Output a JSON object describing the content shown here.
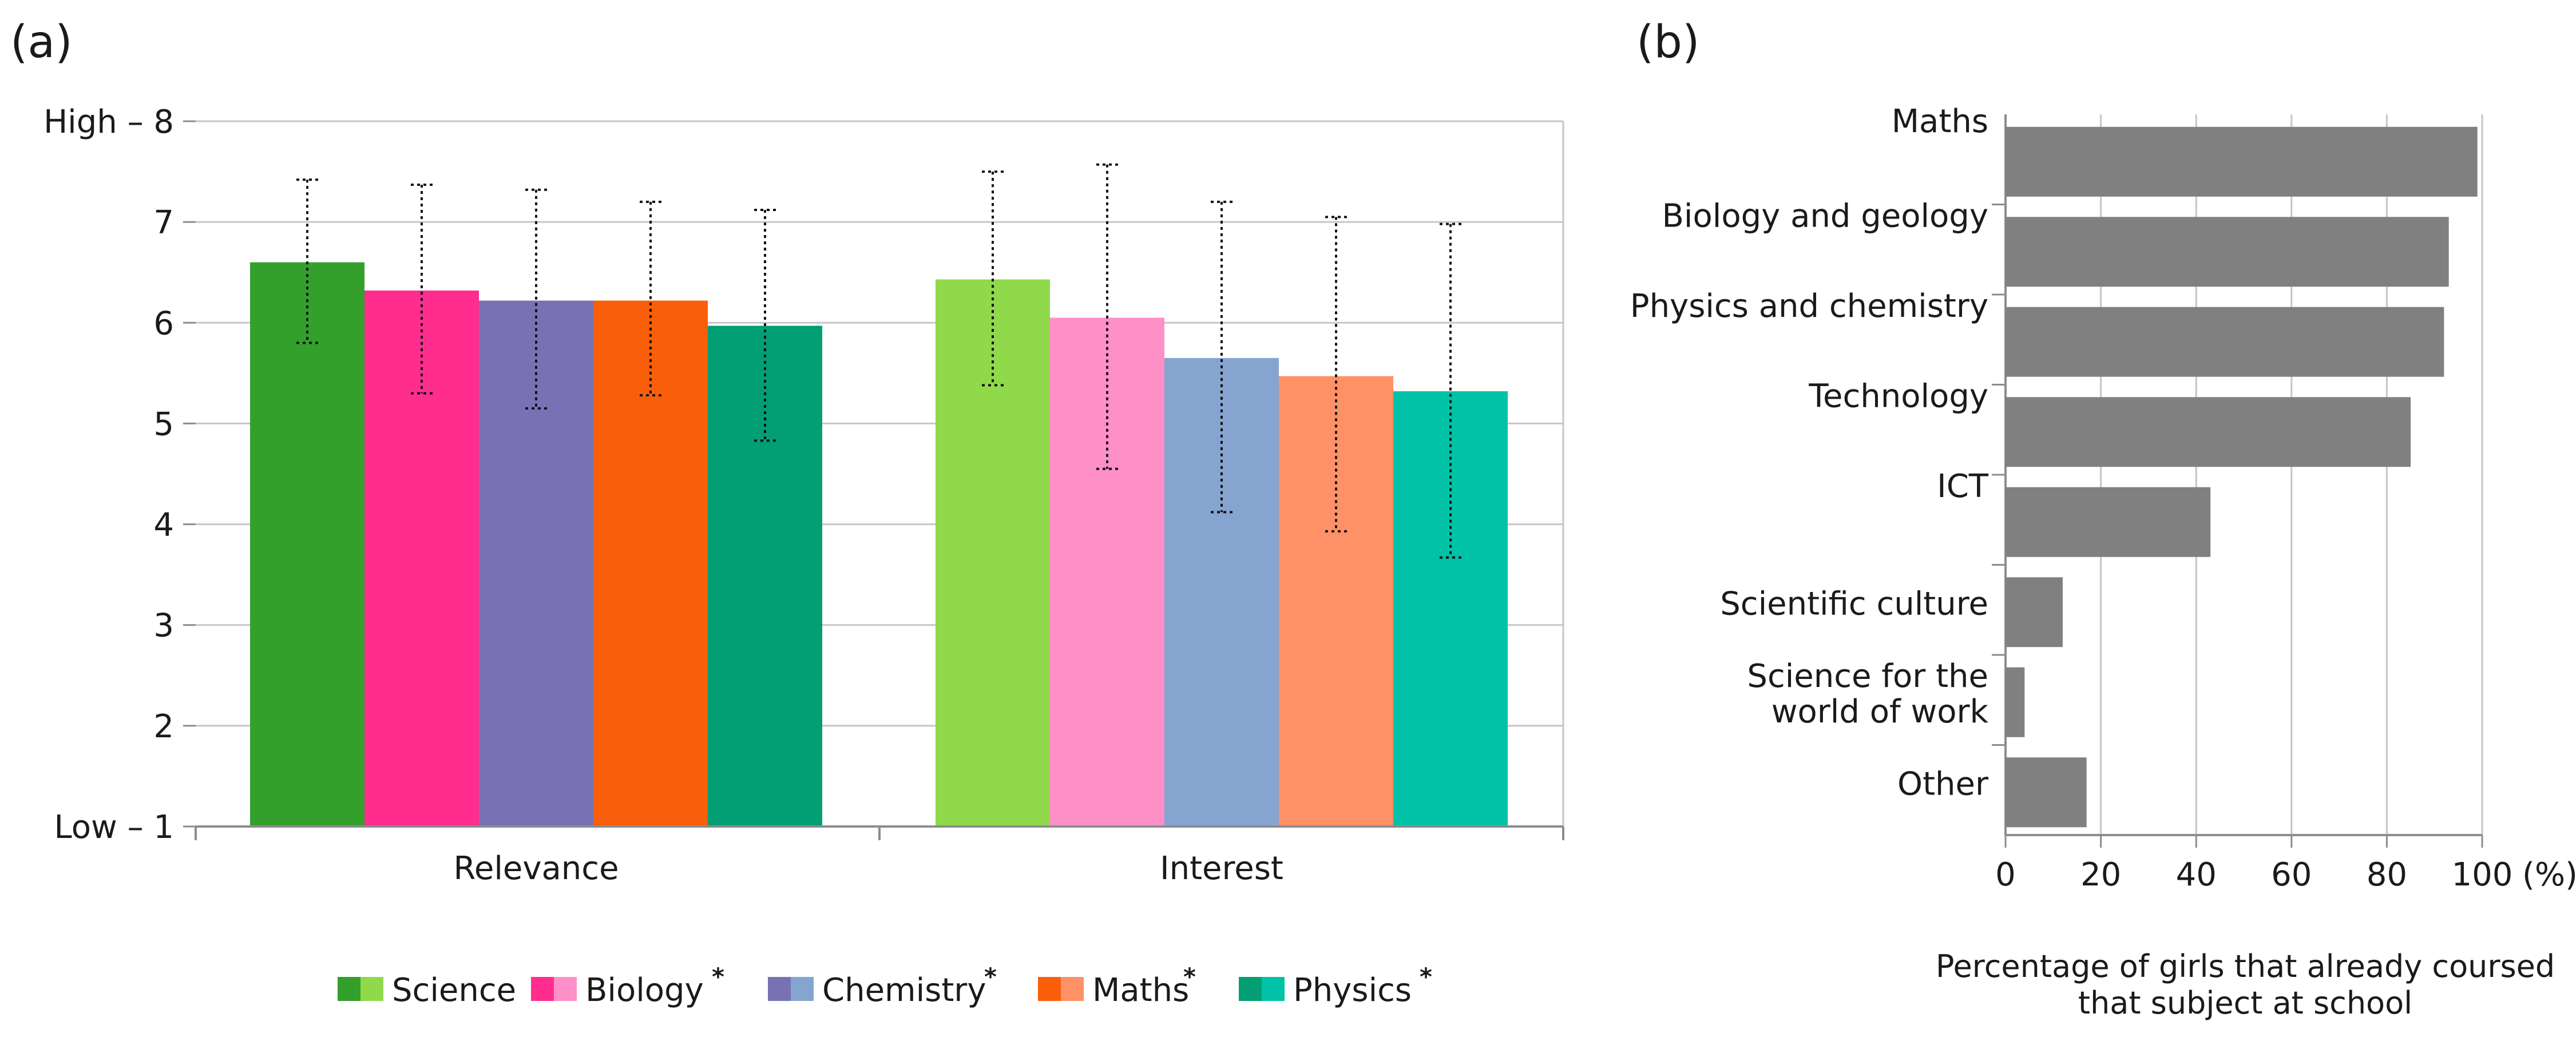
{
  "panels": {
    "a": {
      "label": "(a)"
    },
    "b": {
      "label": "(b)"
    }
  },
  "chart_data": [
    {
      "type": "bar",
      "id": "panel-a",
      "categories": [
        "Relevance",
        "Interest"
      ],
      "ylim": [
        1,
        8
      ],
      "yticks": [
        1,
        2,
        3,
        4,
        5,
        6,
        7,
        8
      ],
      "ytick_labels": [
        "Low – 1",
        "2",
        "3",
        "4",
        "5",
        "6",
        "7",
        "High – 8"
      ],
      "grid": true,
      "legend_position": "bottom",
      "series": [
        {
          "name": "Science",
          "legend_label": "Science",
          "starred": false,
          "colors": [
            "#33a02c",
            "#8fd94a"
          ],
          "values": [
            6.6,
            6.43
          ],
          "error_low": [
            5.8,
            5.38
          ],
          "error_high": [
            7.42,
            7.5
          ]
        },
        {
          "name": "Biology",
          "legend_label": "Biology",
          "starred": true,
          "colors": [
            "#ff2d8e",
            "#ff8fc7"
          ],
          "values": [
            6.32,
            6.05
          ],
          "error_low": [
            5.3,
            4.55
          ],
          "error_high": [
            7.37,
            7.57
          ]
        },
        {
          "name": "Chemistry",
          "legend_label": "Chemistry",
          "starred": true,
          "colors": [
            "#7872b5",
            "#85a5d0"
          ],
          "values": [
            6.22,
            5.65
          ],
          "error_low": [
            5.15,
            4.12
          ],
          "error_high": [
            7.32,
            7.2
          ]
        },
        {
          "name": "Maths",
          "legend_label": "Maths",
          "starred": true,
          "colors": [
            "#f95f0a",
            "#ff9166"
          ],
          "values": [
            6.22,
            5.47
          ],
          "error_low": [
            5.28,
            3.93
          ],
          "error_high": [
            7.2,
            7.05
          ]
        },
        {
          "name": "Physics",
          "legend_label": "Physics",
          "starred": true,
          "colors": [
            "#029e74",
            "#00c2a6"
          ],
          "values": [
            5.97,
            5.32
          ],
          "error_low": [
            4.83,
            3.67
          ],
          "error_high": [
            7.12,
            6.98
          ]
        }
      ],
      "star": "*"
    },
    {
      "type": "bar",
      "orientation": "horizontal",
      "id": "panel-b",
      "categories": [
        [
          "Maths"
        ],
        [
          "Biology and geology"
        ],
        [
          "Physics and chemistry"
        ],
        [
          "Technology"
        ],
        [
          "ICT"
        ],
        [
          "Scientific culture"
        ],
        [
          "Science for the",
          "world of work"
        ],
        [
          "Other"
        ]
      ],
      "values": [
        99,
        93,
        92,
        85,
        43,
        12,
        4,
        17
      ],
      "bar_color": "#808080",
      "xlim": [
        0,
        100
      ],
      "xticks": [
        0,
        20,
        40,
        60,
        80,
        100
      ],
      "xtick_labels": [
        "0",
        "20",
        "40",
        "60",
        "80",
        "100"
      ],
      "x_unit": "(%)",
      "xlabel": [
        "Percentage of girls that already coursed",
        "that subject at school"
      ],
      "grid": true
    }
  ]
}
